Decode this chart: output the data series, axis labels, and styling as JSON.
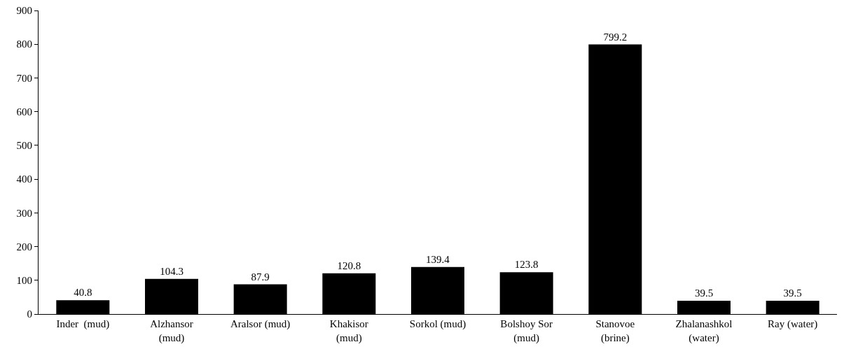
{
  "chart_data": {
    "type": "bar",
    "categories": [
      "Inder  (mud)",
      "Alzhansor\n(mud)",
      "Aralsor (mud)",
      "Khakisor\n(mud)",
      "Sorkol (mud)",
      "Bolshoy Sor\n(mud)",
      "Stanovoe\n(brine)",
      "Zhalanashkol\n(water)",
      "Ray (water)"
    ],
    "values": [
      40.8,
      104.3,
      87.9,
      120.8,
      139.4,
      123.8,
      799.2,
      39.5,
      39.5
    ],
    "color": "#000000",
    "ylim": [
      0,
      900
    ],
    "yticks": [
      0,
      100,
      200,
      300,
      400,
      500,
      600,
      700,
      800,
      900
    ],
    "grid": false,
    "legend": false,
    "data_labels": true
  }
}
